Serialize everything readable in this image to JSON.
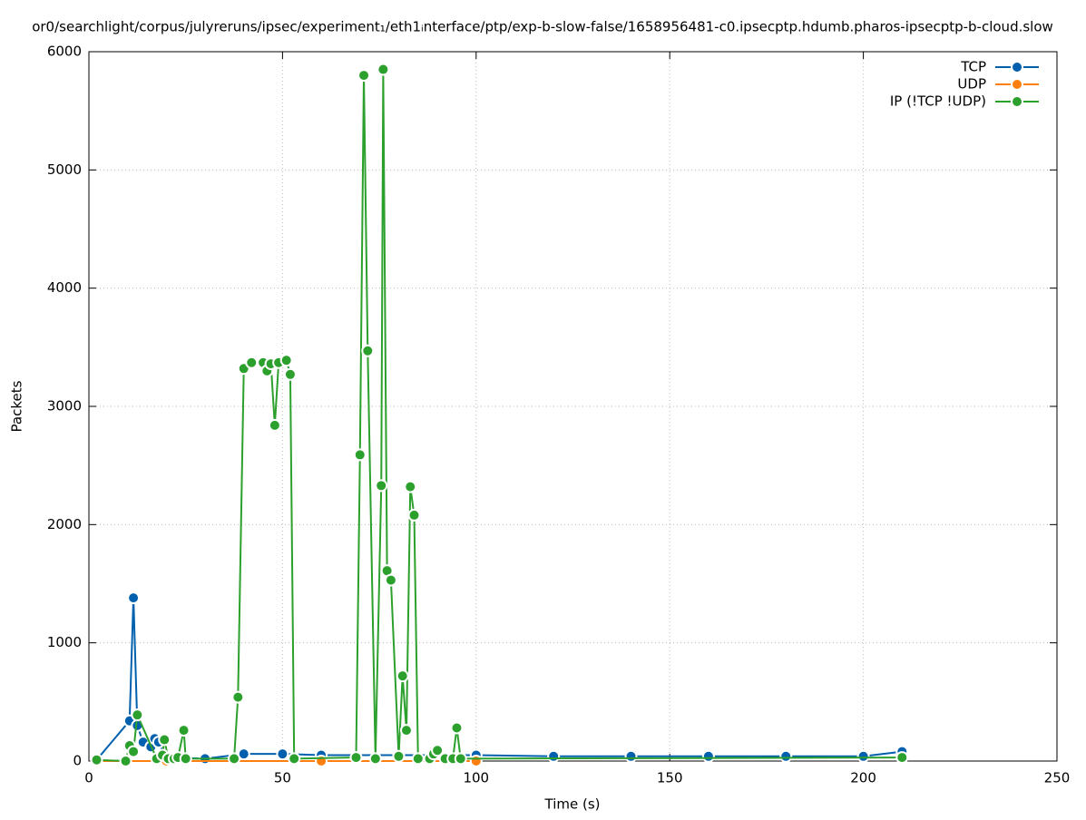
{
  "chart_data": {
    "type": "line",
    "title": "or0/searchlight/corpus/julyreruns/ipsec/experiment₁/eth1ᵢnterface/ptp/exp-b-slow-false/1658956481-c0.ipsecptp.hdumb.pharos-ipsecptp-b-cloud.slow",
    "xlabel": "Time (s)",
    "ylabel": "Packets",
    "xlim": [
      0,
      250
    ],
    "xticks": [
      0,
      50,
      100,
      150,
      200,
      250
    ],
    "ylim": [
      0,
      6000
    ],
    "yticks": [
      0,
      1000,
      2000,
      3000,
      4000,
      5000,
      6000
    ],
    "grid": true,
    "legend": "top-right",
    "series": [
      {
        "name": "TCP",
        "color": "#0060ad",
        "x": [
          2,
          10.5,
          11.5,
          12.5,
          14,
          16,
          17,
          18,
          20,
          22,
          30,
          40,
          50,
          60,
          80,
          100,
          120,
          140,
          160,
          180,
          200,
          210
        ],
        "values": [
          10,
          340,
          1380,
          300,
          160,
          120,
          190,
          160,
          20,
          30,
          20,
          60,
          60,
          50,
          50,
          50,
          40,
          40,
          40,
          40,
          40,
          80
        ]
      },
      {
        "name": "UDP",
        "color": "#ff7f0e",
        "x": [
          2,
          20,
          60,
          100
        ],
        "values": [
          0,
          0,
          0,
          0
        ]
      },
      {
        "name": "IP (!TCP  !UDP)",
        "color": "#2ca02c",
        "x": [
          2,
          9.5,
          10.5,
          11.5,
          12.5,
          17.5,
          19,
          19.5,
          20.5,
          22,
          23,
          24.5,
          25,
          37.5,
          38.5,
          40,
          42,
          45,
          46,
          47,
          48,
          49,
          51,
          52,
          53,
          69,
          70,
          71,
          72,
          74,
          75.5,
          76,
          77,
          78,
          80,
          81,
          82,
          83,
          84,
          85,
          88,
          89,
          90,
          92,
          94,
          95,
          96,
          210
        ],
        "values": [
          10,
          0,
          130,
          80,
          390,
          20,
          50,
          180,
          20,
          20,
          30,
          260,
          20,
          20,
          540,
          3320,
          3370,
          3370,
          3300,
          3360,
          2840,
          3370,
          3390,
          3270,
          20,
          30,
          2590,
          5800,
          3470,
          20,
          2330,
          5850,
          1610,
          1530,
          40,
          720,
          260,
          2320,
          2080,
          20,
          20,
          60,
          90,
          20,
          20,
          280,
          20,
          30
        ]
      }
    ]
  }
}
